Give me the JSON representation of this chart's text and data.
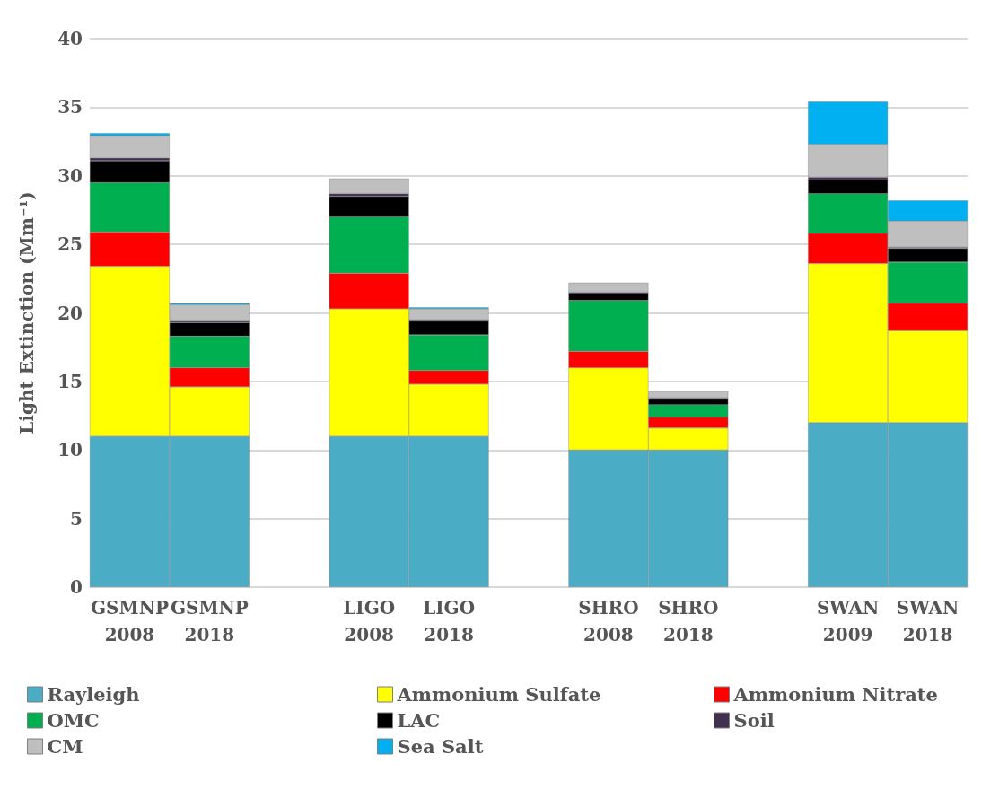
{
  "chart_data": {
    "type": "bar",
    "stacked": true,
    "ylabel": "Light Extinction (Mm⁻¹)",
    "categories": [
      "GSMNP\n2008",
      "GSMNP\n2018",
      null,
      "LIGO\n2008",
      "LIGO\n2018",
      null,
      "SHRO\n2008",
      "SHRO\n2018",
      null,
      "SWAN\n2009",
      "SWAN\n2018"
    ],
    "series": [
      {
        "name": "Rayleigh",
        "color": "#4bacc6",
        "values": [
          11,
          11,
          null,
          11,
          11,
          null,
          10,
          10,
          null,
          12,
          12
        ]
      },
      {
        "name": "Ammonium Sulfate",
        "color": "#ffff00",
        "values": [
          12.4,
          3.6,
          null,
          9.3,
          3.8,
          null,
          6.0,
          1.6,
          null,
          11.6,
          6.7
        ]
      },
      {
        "name": "Ammonium Nitrate",
        "color": "#ff0000",
        "values": [
          2.5,
          1.4,
          null,
          2.6,
          1.0,
          null,
          1.2,
          0.8,
          null,
          2.2,
          2.0
        ]
      },
      {
        "name": "OMC",
        "color": "#00b050",
        "values": [
          3.6,
          2.3,
          null,
          4.1,
          2.6,
          null,
          3.7,
          0.9,
          null,
          2.9,
          3.0
        ]
      },
      {
        "name": "LAC",
        "color": "#000000",
        "values": [
          1.6,
          1.0,
          null,
          1.5,
          1.0,
          null,
          0.5,
          0.4,
          null,
          1.0,
          1.0
        ]
      },
      {
        "name": "Soil",
        "color": "#403151",
        "values": [
          0.2,
          0.1,
          null,
          0.2,
          0.1,
          null,
          0.1,
          0.1,
          null,
          0.2,
          0.1
        ]
      },
      {
        "name": "CM",
        "color": "#bfbfbf",
        "values": [
          1.6,
          1.2,
          null,
          1.1,
          0.8,
          null,
          0.7,
          0.5,
          null,
          2.4,
          1.9
        ]
      },
      {
        "name": "Sea Salt",
        "color": "#00b0f0",
        "values": [
          0.2,
          0.1,
          null,
          null,
          0.1,
          null,
          null,
          null,
          null,
          3.1,
          1.5
        ]
      }
    ],
    "ylim": [
      0,
      40
    ],
    "yticks": [
      0,
      5,
      10,
      15,
      20,
      25,
      30,
      35,
      40
    ],
    "grid": "y",
    "legend": "bottom"
  }
}
